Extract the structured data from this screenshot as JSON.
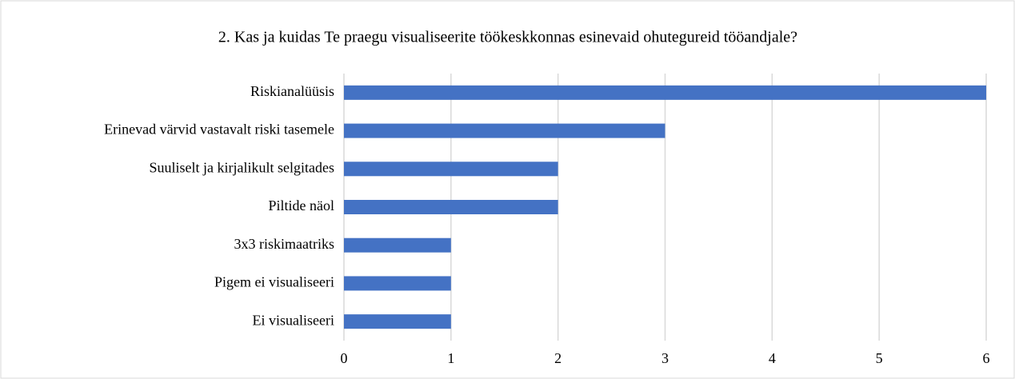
{
  "chart_data": {
    "type": "hbar",
    "title": "2. Kas ja kuidas Te praegu visualiseerite töökeskkonnas esinevaid ohutegureid tööandjale?",
    "categories": [
      "Riskianalüüsis",
      "Erinevad värvid vastavalt riski tasemele",
      "Suuliselt ja kirjalikult selgitades",
      "Piltide näol",
      "3x3 riskimaatriks",
      "Pigem ei visualiseeri",
      "Ei visualiseeri"
    ],
    "values": [
      6,
      3,
      2,
      2,
      1,
      1,
      1
    ],
    "color": "#4472c4",
    "xlim": [
      0,
      6
    ],
    "xticks": [
      0,
      1,
      2,
      3,
      4,
      5,
      6
    ],
    "grid": true
  }
}
